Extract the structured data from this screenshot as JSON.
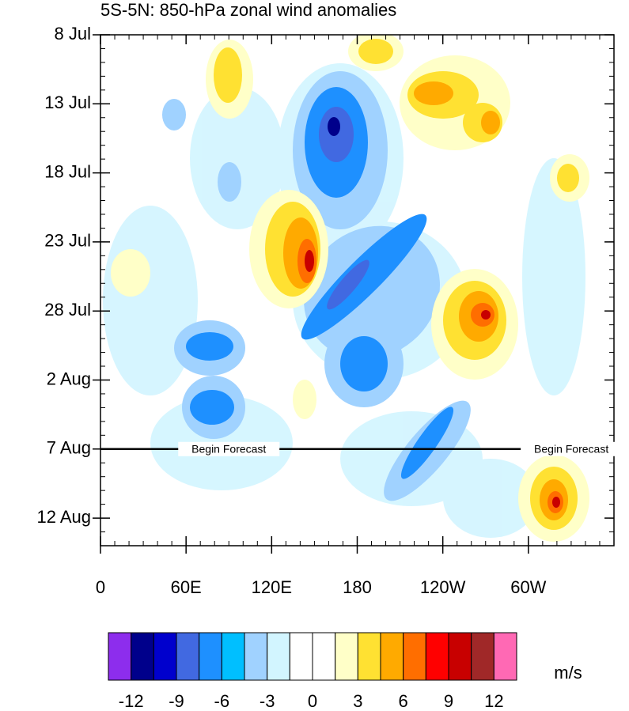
{
  "chart_data": {
    "type": "contour",
    "title": "5S-5N: 850-hPa zonal wind anomalies",
    "xlim": [
      0,
      360
    ],
    "xticks": [
      0,
      {
        "value": 60,
        "label": "60E"
      },
      {
        "value": 120,
        "label": "120E"
      },
      180,
      {
        "value": 240,
        "label": "120W"
      },
      {
        "value": 300,
        "label": "60W"
      }
    ],
    "ylim": [
      0,
      37
    ],
    "yticks": [
      {
        "value": 0,
        "label": "8 Jul"
      },
      {
        "value": 5,
        "label": "13 Jul"
      },
      {
        "value": 10,
        "label": "18 Jul"
      },
      {
        "value": 15,
        "label": "23 Jul"
      },
      {
        "value": 20,
        "label": "28 Jul"
      },
      {
        "value": 25,
        "label": "2 Aug"
      },
      {
        "value": 30,
        "label": "7 Aug"
      },
      {
        "value": 35,
        "label": "12 Aug"
      }
    ],
    "forecast_line": {
      "value": 30,
      "annotations": [
        "Begin Forecast",
        "Begin Forecast"
      ]
    },
    "colorbar": {
      "levels": [
        -12,
        -9,
        -6,
        -3,
        0,
        3,
        6,
        9,
        12
      ],
      "colors": [
        "#8d2ded",
        "#00008b",
        "#0000cd",
        "#4169e1",
        "#1e90ff",
        "#00bfff",
        "#a0d2ff",
        "#d2f5ff",
        "#ffffff",
        "#ffffff",
        "#ffffc8",
        "#ffe132",
        "#ffaa00",
        "#ff6e00",
        "#ff0000",
        "#c80000",
        "#a02828",
        "#ff69b4"
      ],
      "units": "m/s"
    }
  }
}
